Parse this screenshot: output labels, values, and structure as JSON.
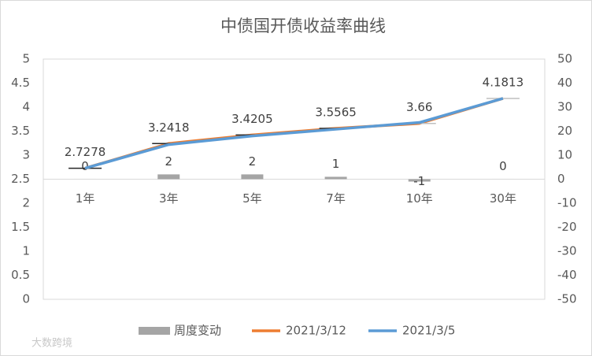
{
  "chart_data": {
    "type": "combo",
    "title": "中债国开债收益率曲线",
    "categories": [
      "1年",
      "3年",
      "5年",
      "7年",
      "10年",
      "30年"
    ],
    "series": [
      {
        "name": "周度变动",
        "type": "bar",
        "axis": "y2",
        "color": "#a5a5a5",
        "values": [
          0,
          2,
          2,
          1,
          -1,
          0
        ]
      },
      {
        "name": "2021/3/12",
        "type": "line",
        "color": "#ed7d31",
        "values": [
          2.7278,
          3.2418,
          3.4205,
          3.5565,
          3.66,
          4.1813
        ]
      },
      {
        "name": "2021/3/5",
        "type": "line",
        "color": "#5b9bd5",
        "values": [
          2.7278,
          3.22,
          3.4,
          3.54,
          3.68,
          4.1813
        ]
      }
    ],
    "ylim": [
      0,
      5
    ],
    "yticks": [
      0,
      0.5,
      1,
      1.5,
      2,
      2.5,
      3,
      3.5,
      4,
      4.5,
      5
    ],
    "y2lim": [
      -50,
      50
    ],
    "y2ticks": [
      -50,
      -40,
      -30,
      -20,
      -10,
      0,
      10,
      20,
      30,
      40,
      50
    ],
    "legend": "bottom",
    "watermark": "大数跨境"
  }
}
